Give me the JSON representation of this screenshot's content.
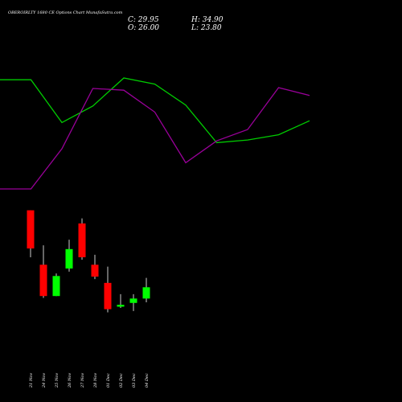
{
  "header": {
    "symbol_line": "OBEROIRLTY 1680  CE Options  Chart MunafaSutra.com",
    "open_label": "O: 26.00",
    "close_label": "C: 29.95",
    "high_label": "H: 34.90",
    "low_label": "L: 23.80"
  },
  "colors": {
    "background": "#000000",
    "up": "#00ff00",
    "down": "#ff0000",
    "line1": "#00cc00",
    "line2": "#990099",
    "wick": "#ffffff",
    "text": "#ffffff"
  },
  "chart_data": {
    "type": "candlestick",
    "categories": [
      "21 Nov",
      "24 Nov",
      "25 Nov",
      "26 Nov",
      "27 Nov",
      "28 Nov",
      "01 Dec",
      "02 Dec",
      "03 Dec",
      "04 Dec"
    ],
    "candles": [
      {
        "open": 23.0,
        "high": 23.0,
        "low": 15.5,
        "close": 16.9
      },
      {
        "open": 14.3,
        "high": 17.4,
        "low": 9.0,
        "close": 9.3
      },
      {
        "open": 9.3,
        "high": 12.9,
        "low": 9.3,
        "close": 12.5
      },
      {
        "open": 13.7,
        "high": 18.3,
        "low": 13.2,
        "close": 16.8
      },
      {
        "open": 20.9,
        "high": 21.7,
        "low": 15.1,
        "close": 15.5
      },
      {
        "open": 14.3,
        "high": 15.9,
        "low": 12.0,
        "close": 12.4
      },
      {
        "open": 11.4,
        "high": 14.0,
        "low": 6.7,
        "close": 7.2
      },
      {
        "open": 7.6,
        "high": 9.6,
        "low": 7.4,
        "close": 7.9
      },
      {
        "open": 8.2,
        "high": 9.6,
        "low": 6.9,
        "close": 8.9
      },
      {
        "open": 8.9,
        "high": 12.2,
        "low": 8.3,
        "close": 10.7
      }
    ],
    "line_series": [
      {
        "color": "#00cc00",
        "values": [
          33.5,
          33.5,
          28.6,
          30.5,
          33.7,
          33.0,
          30.6,
          26.3,
          26.6,
          27.2,
          28.8
        ]
      },
      {
        "color": "#990099",
        "values": [
          21.0,
          21.0,
          25.6,
          32.5,
          32.3,
          29.8,
          24.0,
          26.5,
          27.8,
          32.6,
          31.7
        ]
      }
    ]
  }
}
